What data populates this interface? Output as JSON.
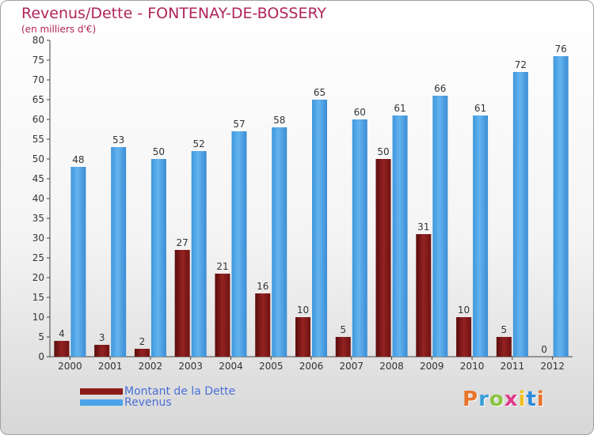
{
  "title": "Revenus/Dette - FONTENAY-DE-BOSSERY",
  "subtitle": "(en milliers d'€)",
  "chart_data": {
    "type": "bar",
    "title": "Revenus/Dette - FONTENAY-DE-BOSSERY",
    "subtitle": "(en milliers d'€)",
    "xlabel": "",
    "ylabel": "",
    "ylim": [
      0,
      80
    ],
    "yticks": [
      0,
      5,
      10,
      15,
      20,
      25,
      30,
      35,
      40,
      45,
      50,
      55,
      60,
      65,
      70,
      75,
      80
    ],
    "grid": false,
    "legend_position": "bottom-left",
    "categories": [
      "2000",
      "2001",
      "2002",
      "2003",
      "2004",
      "2005",
      "2006",
      "2007",
      "2008",
      "2009",
      "2010",
      "2011",
      "2012"
    ],
    "series": [
      {
        "name": "Montant de la Dette",
        "color": "#8b1a1a",
        "values": [
          4,
          3,
          2,
          27,
          21,
          16,
          10,
          5,
          50,
          31,
          10,
          5,
          0
        ]
      },
      {
        "name": "Revenus",
        "color": "#4aa3e8",
        "values": [
          48,
          53,
          50,
          52,
          57,
          58,
          65,
          60,
          61,
          66,
          61,
          72,
          76
        ]
      }
    ]
  },
  "legend": {
    "items": [
      {
        "label": "Montant de la Dette",
        "color": "#8b1a1a"
      },
      {
        "label": "Revenus",
        "color": "#4aa3e8"
      }
    ]
  },
  "logo": {
    "text": "Proxiti",
    "colors": [
      "#e8742a",
      "#3aa0d8",
      "#8bc43f",
      "#e03a8c",
      "#f2c01e",
      "#2a8ad8",
      "#e8742a"
    ]
  }
}
